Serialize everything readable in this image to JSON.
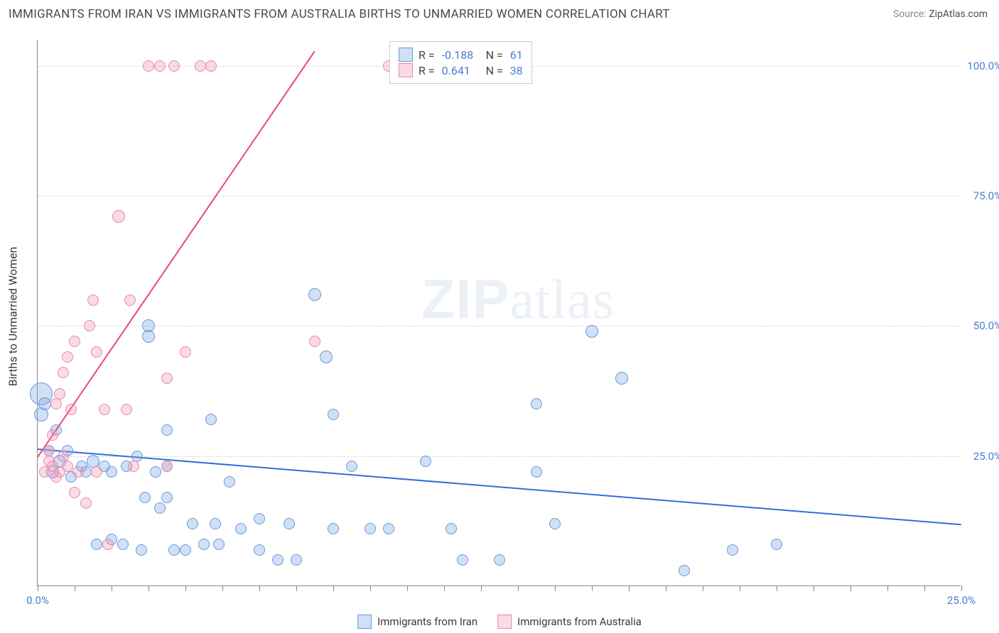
{
  "title": "IMMIGRANTS FROM IRAN VS IMMIGRANTS FROM AUSTRALIA BIRTHS TO UNMARRIED WOMEN CORRELATION CHART",
  "source_label": "Source:",
  "source_value": "ZipAtlas.com",
  "yaxis_title": "Births to Unmarried Women",
  "watermark_a": "ZIP",
  "watermark_b": "atlas",
  "chart": {
    "type": "scatter",
    "background_color": "#ffffff",
    "grid_color": "#d8d8d8",
    "axis_color": "#888888",
    "tick_label_color": "#4a7bd0",
    "x_domain": [
      0,
      25
    ],
    "y_domain": [
      0,
      105
    ],
    "y_gridlines": [
      25,
      50,
      75,
      100
    ],
    "y_tick_labels": [
      "25.0%",
      "50.0%",
      "75.0%",
      "100.0%"
    ],
    "x_ticks": [
      0,
      5,
      10,
      15,
      20,
      25
    ],
    "x_tick_labels": {
      "0": "0.0%",
      "25": "25.0%"
    },
    "x_minor_ticks": [
      1,
      2,
      3,
      4,
      6,
      7,
      8,
      9,
      11,
      12,
      13,
      14,
      16,
      17,
      18,
      19,
      21,
      22,
      23,
      24
    ],
    "series": [
      {
        "name": "Immigrants from Iran",
        "color_fill": "rgba(120,165,225,0.35)",
        "color_stroke": "#6a9ad8",
        "trend_color": "#2f6fd8",
        "R": "-0.188",
        "N": "61",
        "trend": {
          "x1": 0,
          "y1": 26.5,
          "x2": 25,
          "y2": 12
        },
        "points": [
          {
            "x": 0.1,
            "y": 37,
            "r": 16
          },
          {
            "x": 0.1,
            "y": 33,
            "r": 10
          },
          {
            "x": 0.2,
            "y": 35,
            "r": 9
          },
          {
            "x": 0.4,
            "y": 22,
            "r": 9
          },
          {
            "x": 0.5,
            "y": 30,
            "r": 8
          },
          {
            "x": 0.6,
            "y": 24,
            "r": 9
          },
          {
            "x": 0.8,
            "y": 26,
            "r": 8
          },
          {
            "x": 0.3,
            "y": 26,
            "r": 8
          },
          {
            "x": 0.9,
            "y": 21,
            "r": 8
          },
          {
            "x": 1.2,
            "y": 23,
            "r": 8
          },
          {
            "x": 1.5,
            "y": 24,
            "r": 9
          },
          {
            "x": 1.3,
            "y": 22,
            "r": 8
          },
          {
            "x": 1.8,
            "y": 23,
            "r": 8
          },
          {
            "x": 2.0,
            "y": 22,
            "r": 8
          },
          {
            "x": 2.4,
            "y": 23,
            "r": 8
          },
          {
            "x": 2.7,
            "y": 25,
            "r": 8
          },
          {
            "x": 3.2,
            "y": 22,
            "r": 8
          },
          {
            "x": 3.5,
            "y": 23,
            "r": 8
          },
          {
            "x": 1.6,
            "y": 8,
            "r": 8
          },
          {
            "x": 2.0,
            "y": 9,
            "r": 8
          },
          {
            "x": 2.3,
            "y": 8,
            "r": 8
          },
          {
            "x": 2.8,
            "y": 7,
            "r": 8
          },
          {
            "x": 2.9,
            "y": 17,
            "r": 8
          },
          {
            "x": 3.3,
            "y": 15,
            "r": 8
          },
          {
            "x": 3.7,
            "y": 7,
            "r": 8
          },
          {
            "x": 4.0,
            "y": 7,
            "r": 8
          },
          {
            "x": 3.5,
            "y": 30,
            "r": 8
          },
          {
            "x": 3.5,
            "y": 17,
            "r": 8
          },
          {
            "x": 4.2,
            "y": 12,
            "r": 8
          },
          {
            "x": 4.5,
            "y": 8,
            "r": 8
          },
          {
            "x": 4.9,
            "y": 8,
            "r": 8
          },
          {
            "x": 4.7,
            "y": 32,
            "r": 8
          },
          {
            "x": 4.8,
            "y": 12,
            "r": 8
          },
          {
            "x": 5.2,
            "y": 20,
            "r": 8
          },
          {
            "x": 5.5,
            "y": 11,
            "r": 8
          },
          {
            "x": 6.0,
            "y": 7,
            "r": 8
          },
          {
            "x": 6.5,
            "y": 5,
            "r": 8
          },
          {
            "x": 6.0,
            "y": 13,
            "r": 8
          },
          {
            "x": 7.0,
            "y": 5,
            "r": 8
          },
          {
            "x": 6.8,
            "y": 12,
            "r": 8
          },
          {
            "x": 7.8,
            "y": 44,
            "r": 9
          },
          {
            "x": 8.0,
            "y": 11,
            "r": 8
          },
          {
            "x": 8.0,
            "y": 33,
            "r": 8
          },
          {
            "x": 8.5,
            "y": 23,
            "r": 8
          },
          {
            "x": 9.0,
            "y": 11,
            "r": 8
          },
          {
            "x": 9.5,
            "y": 11,
            "r": 8
          },
          {
            "x": 10.5,
            "y": 24,
            "r": 8
          },
          {
            "x": 11.2,
            "y": 11,
            "r": 8
          },
          {
            "x": 11.5,
            "y": 5,
            "r": 8
          },
          {
            "x": 12.5,
            "y": 5,
            "r": 8
          },
          {
            "x": 14.0,
            "y": 12,
            "r": 8
          },
          {
            "x": 13.5,
            "y": 22,
            "r": 8
          },
          {
            "x": 13.5,
            "y": 35,
            "r": 8
          },
          {
            "x": 15.0,
            "y": 49,
            "r": 9
          },
          {
            "x": 15.8,
            "y": 40,
            "r": 9
          },
          {
            "x": 17.5,
            "y": 3,
            "r": 8
          },
          {
            "x": 18.8,
            "y": 7,
            "r": 8
          },
          {
            "x": 20.0,
            "y": 8,
            "r": 8
          },
          {
            "x": 7.5,
            "y": 56,
            "r": 9
          },
          {
            "x": 3.0,
            "y": 48,
            "r": 9
          },
          {
            "x": 3.0,
            "y": 50,
            "r": 9
          }
        ]
      },
      {
        "name": "Immigrants from Australia",
        "color_fill": "rgba(240,150,180,0.35)",
        "color_stroke": "#e88aa8",
        "trend_color": "#e8487a",
        "R": "0.641",
        "N": "38",
        "trend": {
          "x1": 0,
          "y1": 25,
          "x2": 7.5,
          "y2": 103
        },
        "points": [
          {
            "x": 0.2,
            "y": 22,
            "r": 8
          },
          {
            "x": 0.3,
            "y": 24,
            "r": 8
          },
          {
            "x": 0.3,
            "y": 26,
            "r": 8
          },
          {
            "x": 0.4,
            "y": 29,
            "r": 8
          },
          {
            "x": 0.5,
            "y": 21,
            "r": 8
          },
          {
            "x": 0.4,
            "y": 23,
            "r": 8
          },
          {
            "x": 0.6,
            "y": 22,
            "r": 8
          },
          {
            "x": 0.7,
            "y": 25,
            "r": 8
          },
          {
            "x": 0.8,
            "y": 23,
            "r": 8
          },
          {
            "x": 0.7,
            "y": 41,
            "r": 8
          },
          {
            "x": 0.5,
            "y": 35,
            "r": 8
          },
          {
            "x": 0.6,
            "y": 37,
            "r": 8
          },
          {
            "x": 0.8,
            "y": 44,
            "r": 8
          },
          {
            "x": 0.9,
            "y": 34,
            "r": 8
          },
          {
            "x": 1.0,
            "y": 47,
            "r": 8
          },
          {
            "x": 1.1,
            "y": 22,
            "r": 8
          },
          {
            "x": 1.0,
            "y": 18,
            "r": 8
          },
          {
            "x": 1.4,
            "y": 50,
            "r": 8
          },
          {
            "x": 1.5,
            "y": 55,
            "r": 8
          },
          {
            "x": 1.3,
            "y": 16,
            "r": 8
          },
          {
            "x": 1.6,
            "y": 22,
            "r": 8
          },
          {
            "x": 1.6,
            "y": 45,
            "r": 8
          },
          {
            "x": 1.8,
            "y": 34,
            "r": 8
          },
          {
            "x": 1.9,
            "y": 8,
            "r": 8
          },
          {
            "x": 2.2,
            "y": 71,
            "r": 9
          },
          {
            "x": 2.4,
            "y": 34,
            "r": 8
          },
          {
            "x": 2.5,
            "y": 55,
            "r": 8
          },
          {
            "x": 2.6,
            "y": 23,
            "r": 8
          },
          {
            "x": 3.5,
            "y": 40,
            "r": 8
          },
          {
            "x": 3.5,
            "y": 23,
            "r": 8
          },
          {
            "x": 4.0,
            "y": 45,
            "r": 8
          },
          {
            "x": 3.0,
            "y": 100,
            "r": 8
          },
          {
            "x": 3.3,
            "y": 100,
            "r": 8
          },
          {
            "x": 3.7,
            "y": 100,
            "r": 8
          },
          {
            "x": 4.4,
            "y": 100,
            "r": 8
          },
          {
            "x": 4.7,
            "y": 100,
            "r": 8
          },
          {
            "x": 7.5,
            "y": 47,
            "r": 8
          },
          {
            "x": 9.5,
            "y": 100,
            "r": 8
          }
        ]
      }
    ]
  },
  "legend": {
    "item1": "Immigrants from Iran",
    "item2": "Immigrants from Australia"
  },
  "stats_labels": {
    "R": "R =",
    "N": "N ="
  }
}
